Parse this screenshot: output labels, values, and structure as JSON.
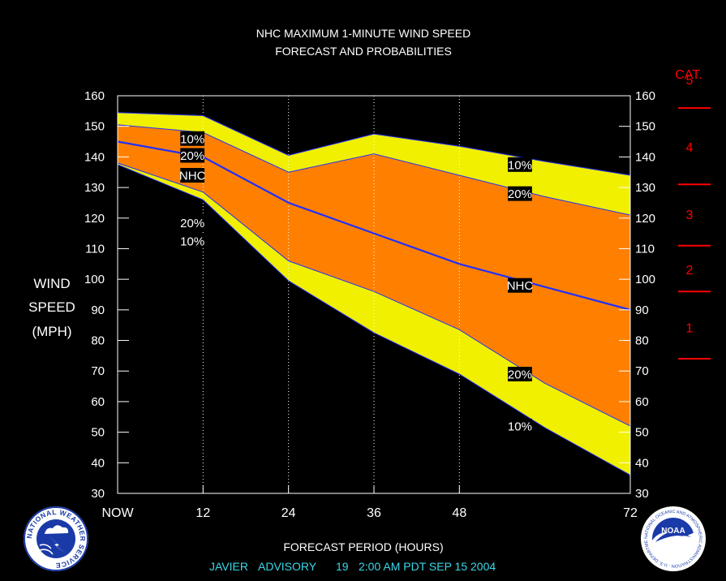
{
  "title": {
    "line1": "NHC MAXIMUM 1-MINUTE WIND SPEED",
    "line2": "FORECAST AND PROBABILITIES"
  },
  "cat_header": "CAT.",
  "ylabel_lines": [
    "WIND",
    "SPEED",
    "(MPH)"
  ],
  "xlabel": "FORECAST PERIOD (HOURS)",
  "advisory": {
    "storm": "JAVIER",
    "advisory_label": "ADVISORY",
    "number": "19",
    "time": "2:00 AM PDT SEP 15 2004"
  },
  "logos": {
    "left": "NATIONAL WEATHER SERVICE",
    "right": "NOAA",
    "right_ring": "NATIONAL OCEANIC AND ATMOSPHERIC ADMINISTRATION · U.S. DEPARTMENT OF COMMERCE"
  },
  "colors": {
    "background": "#000000",
    "band_10": "#f0f000",
    "band_20": "#ff8000",
    "nhc_line": "#2030ff",
    "category": "#ff0000",
    "advisory_text": "#3ad8e8",
    "text": "#ffffff"
  },
  "chart_data": {
    "type": "area",
    "title": "NHC MAXIMUM 1-MINUTE WIND SPEED FORECAST AND PROBABILITIES",
    "xlabel": "FORECAST PERIOD (HOURS)",
    "ylabel": "WIND SPEED (MPH)",
    "x": [
      0,
      12,
      24,
      36,
      48,
      60,
      72
    ],
    "x_tick_labels": [
      "NOW",
      "12",
      "",
      "24",
      "",
      "36",
      "",
      "48",
      "",
      "72"
    ],
    "x_ticks": [
      0,
      12,
      24,
      36,
      48,
      72
    ],
    "ylim": [
      30,
      160
    ],
    "y_ticks": [
      30,
      40,
      50,
      60,
      70,
      80,
      90,
      100,
      110,
      120,
      130,
      140,
      150,
      160
    ],
    "grid": "vertical dotted",
    "series": [
      {
        "name": "10%",
        "x": [
          0,
          12,
          24,
          36,
          48,
          60,
          72
        ],
        "values": [
          154.5,
          153.5,
          140.5,
          147.5,
          143.5,
          138.5,
          134
        ]
      },
      {
        "name": "20%",
        "x": [
          0,
          12,
          24,
          36,
          48,
          60,
          72
        ],
        "values": [
          150.5,
          148,
          135,
          141,
          134,
          127,
          121
        ]
      },
      {
        "name": "NHC",
        "x": [
          0,
          12,
          24,
          36,
          48,
          60,
          72
        ],
        "values": [
          145,
          140,
          125,
          115,
          105,
          97.5,
          90
        ]
      },
      {
        "name": "20%",
        "x": [
          0,
          12,
          24,
          36,
          48,
          60,
          72
        ],
        "values": [
          138,
          128.5,
          106,
          96,
          83.5,
          66,
          52
        ]
      },
      {
        "name": "10%",
        "x": [
          0,
          12,
          24,
          36,
          48,
          60,
          72
        ],
        "values": [
          137.5,
          126,
          99.5,
          82.5,
          69,
          51.5,
          36
        ]
      }
    ],
    "series_labels": [
      {
        "text": "10%",
        "x": 10.5,
        "y": 146
      },
      {
        "text": "20%",
        "x": 10.5,
        "y": 140.5
      },
      {
        "text": "NHC",
        "x": 10.5,
        "y": 134
      },
      {
        "text": "20%",
        "x": 10.5,
        "y": 118.5
      },
      {
        "text": "10%",
        "x": 10.5,
        "y": 112.5
      },
      {
        "text": "10%",
        "x": 56.5,
        "y": 137.5
      },
      {
        "text": "20%",
        "x": 56.5,
        "y": 128
      },
      {
        "text": "NHC",
        "x": 56.5,
        "y": 98
      },
      {
        "text": "20%",
        "x": 56.5,
        "y": 69
      },
      {
        "text": "10%",
        "x": 56.5,
        "y": 52
      }
    ],
    "categories": [
      {
        "label": "5",
        "y": 165
      },
      {
        "label": "4",
        "y": 143
      },
      {
        "label": "3",
        "y": 121
      },
      {
        "label": "2",
        "y": 103
      },
      {
        "label": "1",
        "y": 84
      }
    ],
    "category_thresholds": [
      156,
      131,
      111,
      96,
      74
    ]
  }
}
